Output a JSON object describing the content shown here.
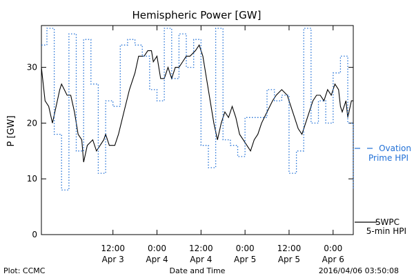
{
  "chart_data": {
    "type": "line",
    "title": "Hemispheric Power [GW]",
    "ylabel": "P [GW]",
    "xlabel": "Date and Time",
    "ylim": [
      0,
      37.5
    ],
    "xlim": [
      "2016-04-02T16:30",
      "2016-04-06T05:30"
    ],
    "yticks": [
      0,
      10,
      20,
      30
    ],
    "yticks_labels": [
      "0",
      "10",
      "20",
      "30"
    ],
    "xticks": [
      {
        "at": "2016-04-03T12:00",
        "time": "12:00",
        "date": "Apr 3"
      },
      {
        "at": "2016-04-04T00:00",
        "time": "0:00",
        "date": "Apr 4"
      },
      {
        "at": "2016-04-04T12:00",
        "time": "12:00",
        "date": "Apr 4"
      },
      {
        "at": "2016-04-05T00:00",
        "time": "0:00",
        "date": "Apr 5"
      },
      {
        "at": "2016-04-05T12:00",
        "time": "12:00",
        "date": "Apr 5"
      },
      {
        "at": "2016-04-06T00:00",
        "time": "0:00",
        "date": "Apr 6"
      }
    ],
    "series": [
      {
        "name": "SWPC 5-min HPI",
        "legend_lines": [
          "SWPC",
          "5-min HPI"
        ],
        "color": "#000000",
        "style": "solid",
        "points": [
          [
            "2016-04-02T16:30",
            30
          ],
          [
            "2016-04-02T17:30",
            24
          ],
          [
            "2016-04-02T18:30",
            23
          ],
          [
            "2016-04-02T19:30",
            20
          ],
          [
            "2016-04-02T20:30",
            23
          ],
          [
            "2016-04-02T21:30",
            26
          ],
          [
            "2016-04-02T22:00",
            27
          ],
          [
            "2016-04-02T23:30",
            25
          ],
          [
            "2016-04-03T00:30",
            25
          ],
          [
            "2016-04-03T01:30",
            22
          ],
          [
            "2016-04-03T02:30",
            18
          ],
          [
            "2016-04-03T03:30",
            17
          ],
          [
            "2016-04-03T04:00",
            13
          ],
          [
            "2016-04-03T05:00",
            16
          ],
          [
            "2016-04-03T06:30",
            17
          ],
          [
            "2016-04-03T07:30",
            15
          ],
          [
            "2016-04-03T08:30",
            16
          ],
          [
            "2016-04-03T09:30",
            17
          ],
          [
            "2016-04-03T10:00",
            18
          ],
          [
            "2016-04-03T11:00",
            16
          ],
          [
            "2016-04-03T12:30",
            16
          ],
          [
            "2016-04-03T13:30",
            18
          ],
          [
            "2016-04-03T15:00",
            22
          ],
          [
            "2016-04-03T16:30",
            26
          ],
          [
            "2016-04-03T18:00",
            29
          ],
          [
            "2016-04-03T19:00",
            32
          ],
          [
            "2016-04-03T20:30",
            32
          ],
          [
            "2016-04-03T21:30",
            33
          ],
          [
            "2016-04-03T22:30",
            33
          ],
          [
            "2016-04-03T23:00",
            31
          ],
          [
            "2016-04-04T00:00",
            32
          ],
          [
            "2016-04-04T01:00",
            28
          ],
          [
            "2016-04-04T02:00",
            28
          ],
          [
            "2016-04-04T03:00",
            30
          ],
          [
            "2016-04-04T04:00",
            28
          ],
          [
            "2016-04-04T05:00",
            30
          ],
          [
            "2016-04-04T06:00",
            30
          ],
          [
            "2016-04-04T07:00",
            31
          ],
          [
            "2016-04-04T08:00",
            32
          ],
          [
            "2016-04-04T09:00",
            32
          ],
          [
            "2016-04-04T10:30",
            33
          ],
          [
            "2016-04-04T11:30",
            34
          ],
          [
            "2016-04-04T12:30",
            32
          ],
          [
            "2016-04-04T13:30",
            28
          ],
          [
            "2016-04-04T14:30",
            24
          ],
          [
            "2016-04-04T15:30",
            20
          ],
          [
            "2016-04-04T16:30",
            17
          ],
          [
            "2016-04-04T17:30",
            20
          ],
          [
            "2016-04-04T18:30",
            22
          ],
          [
            "2016-04-04T19:30",
            21
          ],
          [
            "2016-04-04T20:30",
            23
          ],
          [
            "2016-04-04T21:30",
            21
          ],
          [
            "2016-04-04T22:30",
            18
          ],
          [
            "2016-04-04T23:30",
            17
          ],
          [
            "2016-04-05T00:30",
            16
          ],
          [
            "2016-04-05T01:30",
            15
          ],
          [
            "2016-04-05T02:30",
            17
          ],
          [
            "2016-04-05T03:30",
            18
          ],
          [
            "2016-04-05T04:30",
            20
          ],
          [
            "2016-04-05T06:00",
            22
          ],
          [
            "2016-04-05T07:30",
            24
          ],
          [
            "2016-04-05T08:30",
            25
          ],
          [
            "2016-04-05T10:00",
            26
          ],
          [
            "2016-04-05T11:30",
            25
          ],
          [
            "2016-04-05T12:30",
            23
          ],
          [
            "2016-04-05T13:30",
            21
          ],
          [
            "2016-04-05T14:30",
            19
          ],
          [
            "2016-04-05T15:30",
            18
          ],
          [
            "2016-04-05T16:30",
            20
          ],
          [
            "2016-04-05T17:30",
            22
          ],
          [
            "2016-04-05T18:30",
            24
          ],
          [
            "2016-04-05T19:30",
            25
          ],
          [
            "2016-04-05T20:30",
            25
          ],
          [
            "2016-04-05T21:30",
            24
          ],
          [
            "2016-04-05T22:30",
            26
          ],
          [
            "2016-04-05T23:30",
            25
          ],
          [
            "2016-04-06T00:30",
            27
          ],
          [
            "2016-04-06T01:30",
            26
          ],
          [
            "2016-04-06T02:00",
            23
          ],
          [
            "2016-04-06T02:30",
            22
          ],
          [
            "2016-04-06T03:30",
            24
          ],
          [
            "2016-04-06T04:00",
            21
          ],
          [
            "2016-04-06T05:00",
            24
          ],
          [
            "2016-04-06T05:30",
            24
          ]
        ]
      },
      {
        "name": "Ovation Prime HPI",
        "legend_lines": [
          "Ovation",
          "Prime HPI"
        ],
        "color": "#1f6fd6",
        "style": "dotted-step",
        "points": [
          [
            "2016-04-02T16:30",
            34
          ],
          [
            "2016-04-02T18:00",
            37
          ],
          [
            "2016-04-02T20:00",
            18
          ],
          [
            "2016-04-02T22:00",
            8
          ],
          [
            "2016-04-03T00:00",
            36
          ],
          [
            "2016-04-03T02:00",
            15
          ],
          [
            "2016-04-03T04:00",
            35
          ],
          [
            "2016-04-03T06:00",
            27
          ],
          [
            "2016-04-03T08:00",
            11
          ],
          [
            "2016-04-03T10:00",
            24
          ],
          [
            "2016-04-03T12:00",
            23
          ],
          [
            "2016-04-03T14:00",
            34
          ],
          [
            "2016-04-03T16:00",
            35
          ],
          [
            "2016-04-03T18:00",
            34
          ],
          [
            "2016-04-03T20:00",
            32
          ],
          [
            "2016-04-03T22:00",
            26
          ],
          [
            "2016-04-04T00:00",
            24
          ],
          [
            "2016-04-04T02:00",
            37
          ],
          [
            "2016-04-04T04:00",
            28
          ],
          [
            "2016-04-04T06:00",
            36
          ],
          [
            "2016-04-04T08:00",
            30
          ],
          [
            "2016-04-04T10:00",
            35
          ],
          [
            "2016-04-04T12:00",
            16
          ],
          [
            "2016-04-04T14:00",
            12
          ],
          [
            "2016-04-04T16:00",
            37
          ],
          [
            "2016-04-04T18:00",
            17
          ],
          [
            "2016-04-04T20:00",
            16
          ],
          [
            "2016-04-04T22:00",
            14
          ],
          [
            "2016-04-05T00:00",
            21
          ],
          [
            "2016-04-05T02:00",
            21
          ],
          [
            "2016-04-05T04:00",
            21
          ],
          [
            "2016-04-05T06:00",
            26
          ],
          [
            "2016-04-05T08:00",
            24
          ],
          [
            "2016-04-05T10:00",
            25
          ],
          [
            "2016-04-05T12:00",
            11
          ],
          [
            "2016-04-05T14:00",
            15
          ],
          [
            "2016-04-05T16:00",
            37
          ],
          [
            "2016-04-05T18:00",
            20
          ],
          [
            "2016-04-05T20:00",
            24
          ],
          [
            "2016-04-05T22:00",
            20
          ],
          [
            "2016-04-06T00:00",
            29
          ],
          [
            "2016-04-06T02:00",
            32
          ],
          [
            "2016-04-06T04:00",
            20
          ],
          [
            "2016-04-06T05:30",
            8
          ]
        ]
      }
    ]
  },
  "footer": {
    "left": "Plot: CCMC",
    "center": "Date and Time",
    "right": "2016/04/06 03:50:08"
  }
}
